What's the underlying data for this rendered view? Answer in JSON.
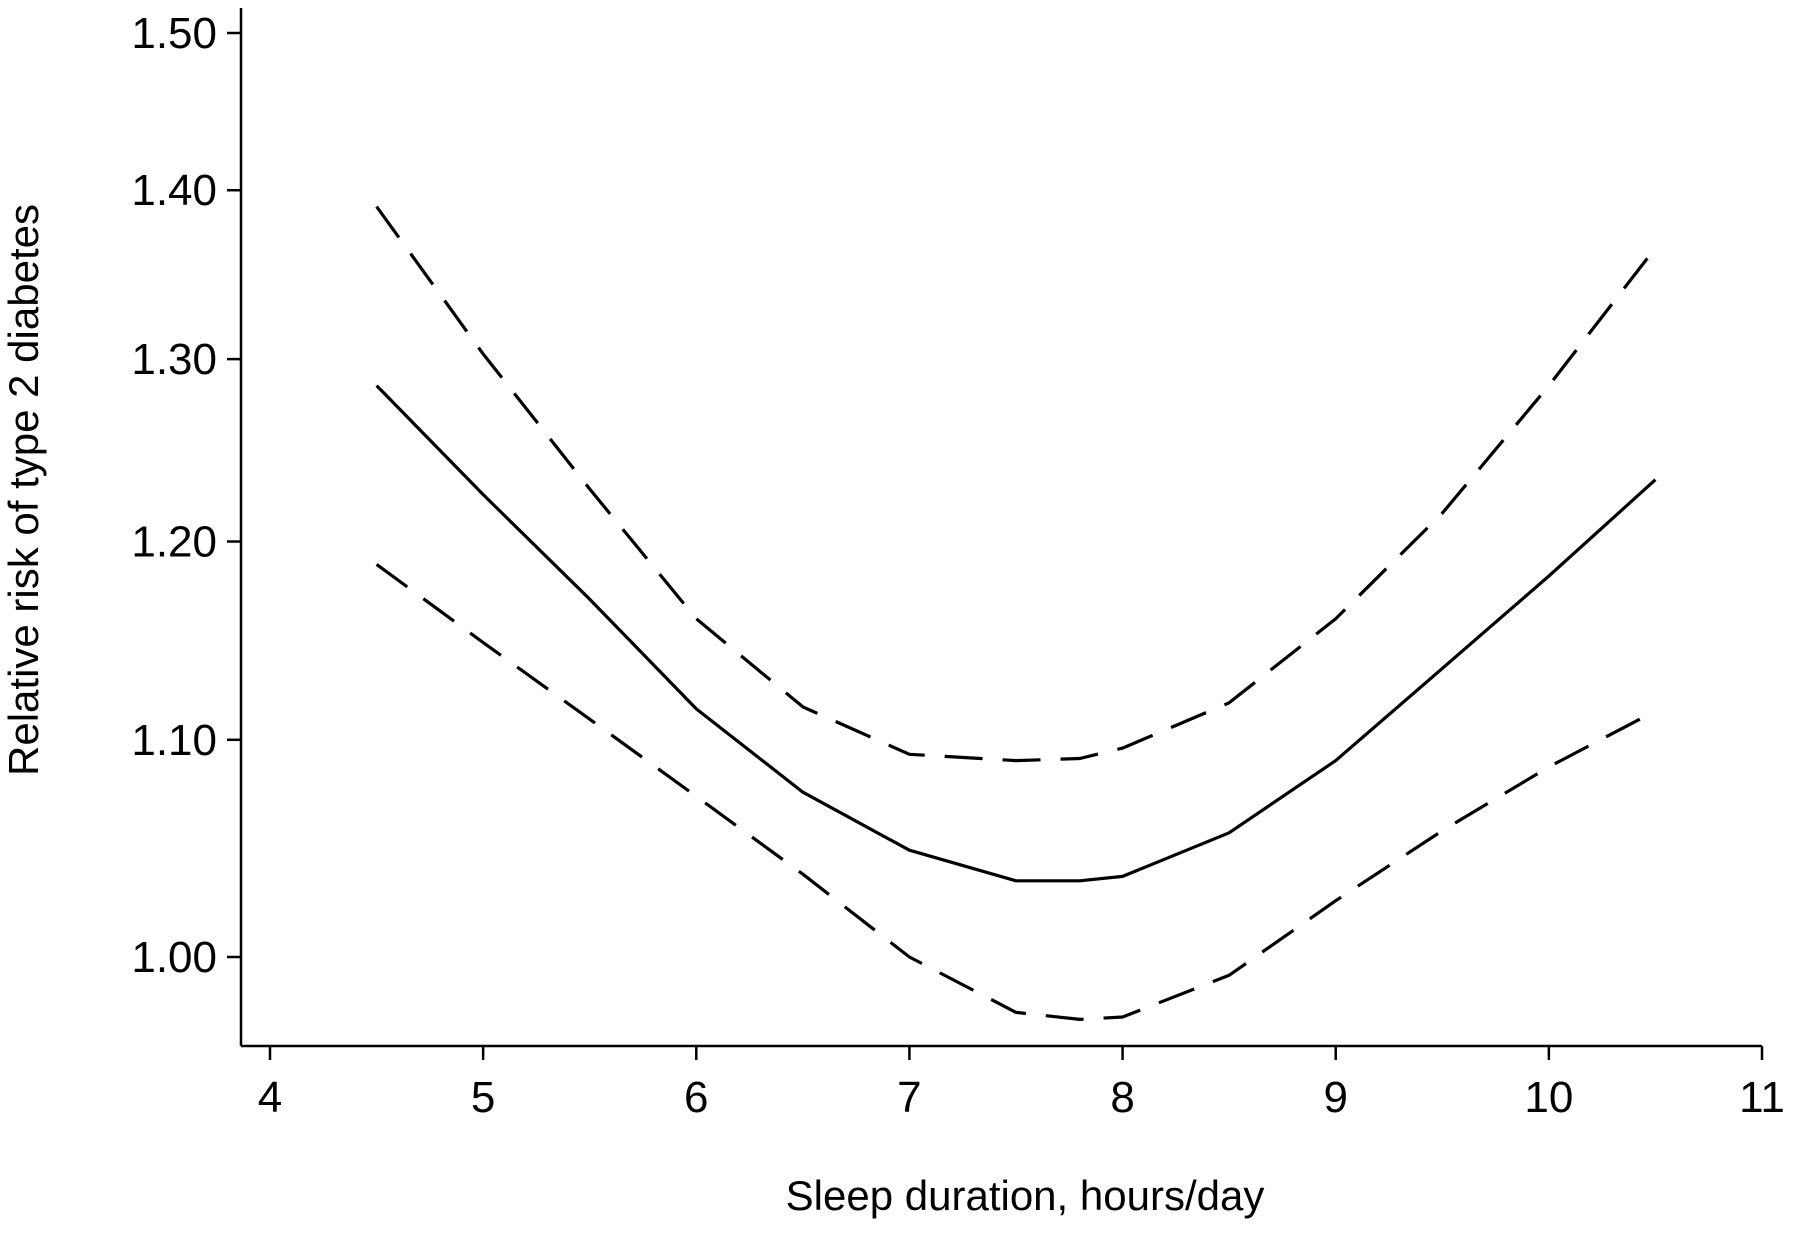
{
  "chart_data": {
    "type": "line",
    "title": "",
    "xlabel": "Sleep duration, hours/day",
    "ylabel": "Relative risk of type 2 diabetes",
    "xlim": [
      4,
      11
    ],
    "ylim": [
      0.96,
      1.5
    ],
    "y_scale": "log",
    "x_ticks": [
      4,
      5,
      6,
      7,
      8,
      9,
      10,
      11
    ],
    "x_tick_labels": [
      "4",
      "5",
      "6",
      "7",
      "8",
      "9",
      "10",
      "11"
    ],
    "y_ticks": [
      1.0,
      1.1,
      1.2,
      1.3,
      1.4,
      1.5
    ],
    "y_tick_labels": [
      "1.00",
      "1.10",
      "1.20",
      "1.30",
      "1.40",
      "1.50"
    ],
    "grid": false,
    "legend": "none",
    "series": [
      {
        "style": "solid",
        "color": "#000000",
        "x": [
          4.5,
          5.0,
          5.5,
          6.0,
          6.5,
          7.0,
          7.5,
          7.8,
          8.0,
          8.5,
          9.0,
          9.5,
          10.0,
          10.5
        ],
        "y": [
          1.285,
          1.225,
          1.17,
          1.115,
          1.075,
          1.048,
          1.034,
          1.034,
          1.036,
          1.056,
          1.09,
          1.135,
          1.182,
          1.233
        ]
      },
      {
        "style": "dashed",
        "color": "#000000",
        "x": [
          4.5,
          5.0,
          5.5,
          6.0,
          6.5,
          7.0,
          7.5,
          7.8,
          8.0,
          8.5,
          9.0,
          9.5,
          10.0,
          10.5
        ],
        "y": [
          1.39,
          1.303,
          1.228,
          1.16,
          1.116,
          1.093,
          1.09,
          1.091,
          1.096,
          1.118,
          1.16,
          1.215,
          1.285,
          1.365
        ]
      },
      {
        "style": "dashed",
        "color": "#000000",
        "x": [
          4.5,
          5.0,
          5.5,
          6.0,
          6.5,
          7.0,
          7.5,
          7.8,
          8.0,
          8.5,
          9.0,
          9.5,
          10.0,
          10.5
        ],
        "y": [
          1.188,
          1.148,
          1.11,
          1.073,
          1.037,
          1.0,
          0.976,
          0.973,
          0.974,
          0.992,
          1.025,
          1.057,
          1.087,
          1.114
        ]
      }
    ]
  }
}
